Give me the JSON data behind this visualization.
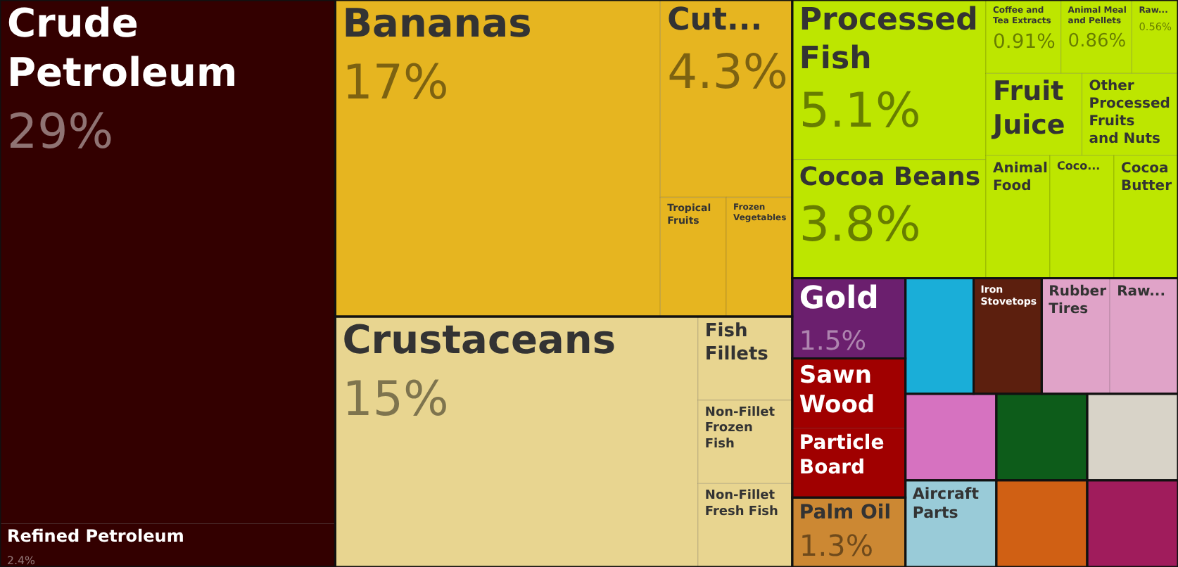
{
  "chart_data": {
    "type": "other",
    "categories": [
      "Crude Petroleum",
      "Refined Petroleum",
      "Bananas",
      "Cut...",
      "Tropical Fruits",
      "Frozen Vegetables",
      "Crustaceans",
      "Fish Fillets",
      "Non-Fillet Frozen Fish",
      "Non-Fillet Fresh Fish",
      "Processed Fish",
      "Cocoa Beans",
      "Coffee and Tea Extracts",
      "Animal Meal and Pellets",
      "Raw...",
      "Fruit Juice",
      "Other Processed Fruits and Nuts",
      "Animal Food",
      "Coco...",
      "Cocoa Butter",
      "Gold",
      "Sawn Wood",
      "Particle Board",
      "Palm Oil",
      null,
      "Iron Stovetops",
      "Rubber Tires",
      "Raw...",
      null,
      "Aircraft Parts",
      null,
      null,
      null,
      null
    ],
    "values": [
      29,
      2.4,
      17,
      4.3,
      null,
      null,
      15,
      null,
      null,
      null,
      5.1,
      3.8,
      0.91,
      0.86,
      0.56,
      null,
      null,
      null,
      null,
      null,
      1.5,
      null,
      null,
      1.3,
      null,
      null,
      null,
      null,
      null,
      null,
      null,
      null,
      null,
      null
    ],
    "value_labels": [
      "29%",
      "2.4%",
      "17%",
      "4.3%",
      null,
      null,
      "15%",
      null,
      null,
      null,
      "5.1%",
      "3.8%",
      "0.91%",
      "0.86%",
      "0.56%",
      null,
      null,
      null,
      null,
      null,
      "1.5%",
      null,
      null,
      "1.3%",
      null,
      null,
      null,
      null,
      null,
      null,
      null,
      null,
      null,
      null
    ],
    "colors": [
      "#330000",
      "#330000",
      "#e6b520",
      "#e6b520",
      "#e6b520",
      "#e6b520",
      "#e8d590",
      "#e8d590",
      "#e8d590",
      "#e8d590",
      "#bde600",
      "#bde600",
      "#bde600",
      "#bde600",
      "#bde600",
      "#bde600",
      "#bde600",
      "#bde600",
      "#bde600",
      "#bde600",
      "#6b1f6e",
      "#a00000",
      "#a00000",
      "#cc8833",
      "#1aaed8",
      "#5c1f0e",
      "#e0a3c8",
      "#e0a3c8",
      "#d672c0",
      "#99cbd8",
      "#0d5c1a",
      "#d06014",
      "#d8d3c8",
      "#a01c5c"
    ]
  }
}
